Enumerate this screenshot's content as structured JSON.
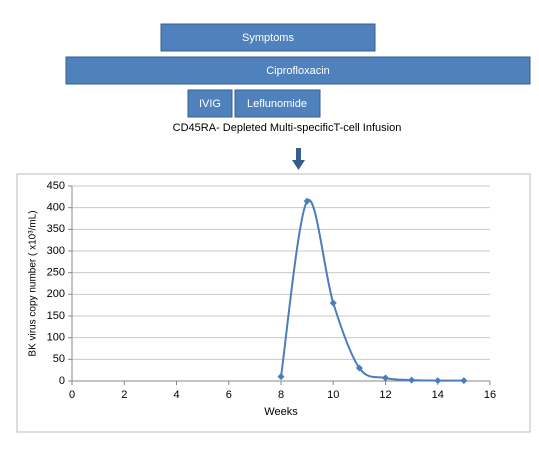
{
  "timeline": {
    "boxes": [
      "Symptoms",
      "Ciprofloxacin",
      "IVIG",
      "Leflunomide"
    ],
    "infusion_label": "CD45RA- Depleted Multi-specificT-cell Infusion"
  },
  "chart_data": {
    "type": "line",
    "x_label": "Weeks",
    "y_label": "BK virus copy number ( x10³/mL)",
    "x": [
      8,
      9,
      10,
      11,
      12,
      13,
      14,
      15
    ],
    "series": [
      {
        "name": "BK virus",
        "color": "#4a7ebb",
        "values": [
          10,
          415,
          180,
          30,
          7,
          2,
          1,
          1
        ]
      }
    ],
    "xlim": [
      0,
      16
    ],
    "xticks": [
      0,
      2,
      4,
      6,
      8,
      10,
      12,
      14,
      16
    ],
    "ylim": [
      0,
      450
    ],
    "yticks": [
      0,
      50,
      100,
      150,
      200,
      250,
      300,
      350,
      400,
      450
    ],
    "grid": true,
    "smooth": true
  }
}
